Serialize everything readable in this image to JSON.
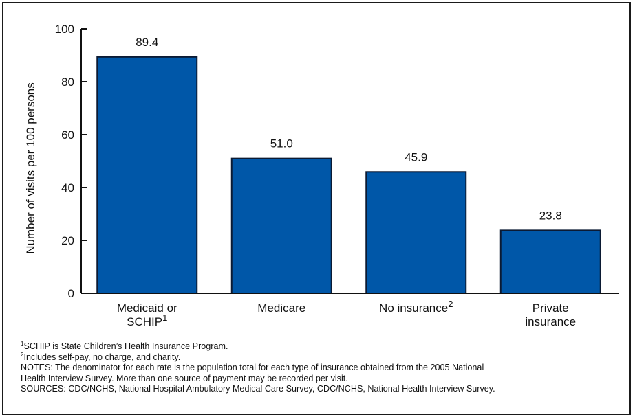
{
  "chart_data": {
    "type": "bar",
    "categories": [
      {
        "lines": [
          "Medicaid or",
          "SCHIP"
        ],
        "superscript": "1"
      },
      {
        "lines": [
          "Medicare"
        ],
        "superscript": ""
      },
      {
        "lines": [
          "No insurance"
        ],
        "superscript": "2"
      },
      {
        "lines": [
          "Private",
          "insurance"
        ],
        "superscript": ""
      }
    ],
    "values": [
      89.4,
      51.0,
      45.9,
      23.8
    ],
    "value_labels": [
      "89.4",
      "51.0",
      "45.9",
      "23.8"
    ],
    "ylabel": "Number of visits per 100 persons",
    "ylim": [
      0,
      100
    ],
    "yticks": [
      0,
      20,
      40,
      60,
      80,
      100
    ],
    "grid": false,
    "bar_color": "#0057a8",
    "bar_stroke": "#0b1a33"
  },
  "footnotes": [
    {
      "sup": "1",
      "text": "SCHIP is State Children’s Health Insurance Program."
    },
    {
      "sup": "2",
      "text": "Includes self-pay, no charge, and charity."
    },
    {
      "sup": "",
      "text": "NOTES: The denominator for each rate is the population total for each type of insurance obtained from the 2005 National"
    },
    {
      "sup": "",
      "text": "Health Interview Survey.  More than one source of payment may be recorded per visit."
    },
    {
      "sup": "",
      "text": "SOURCES: CDC/NCHS, National Hospital Ambulatory Medical Care Survey, CDC/NCHS, National Health Interview Survey."
    }
  ]
}
